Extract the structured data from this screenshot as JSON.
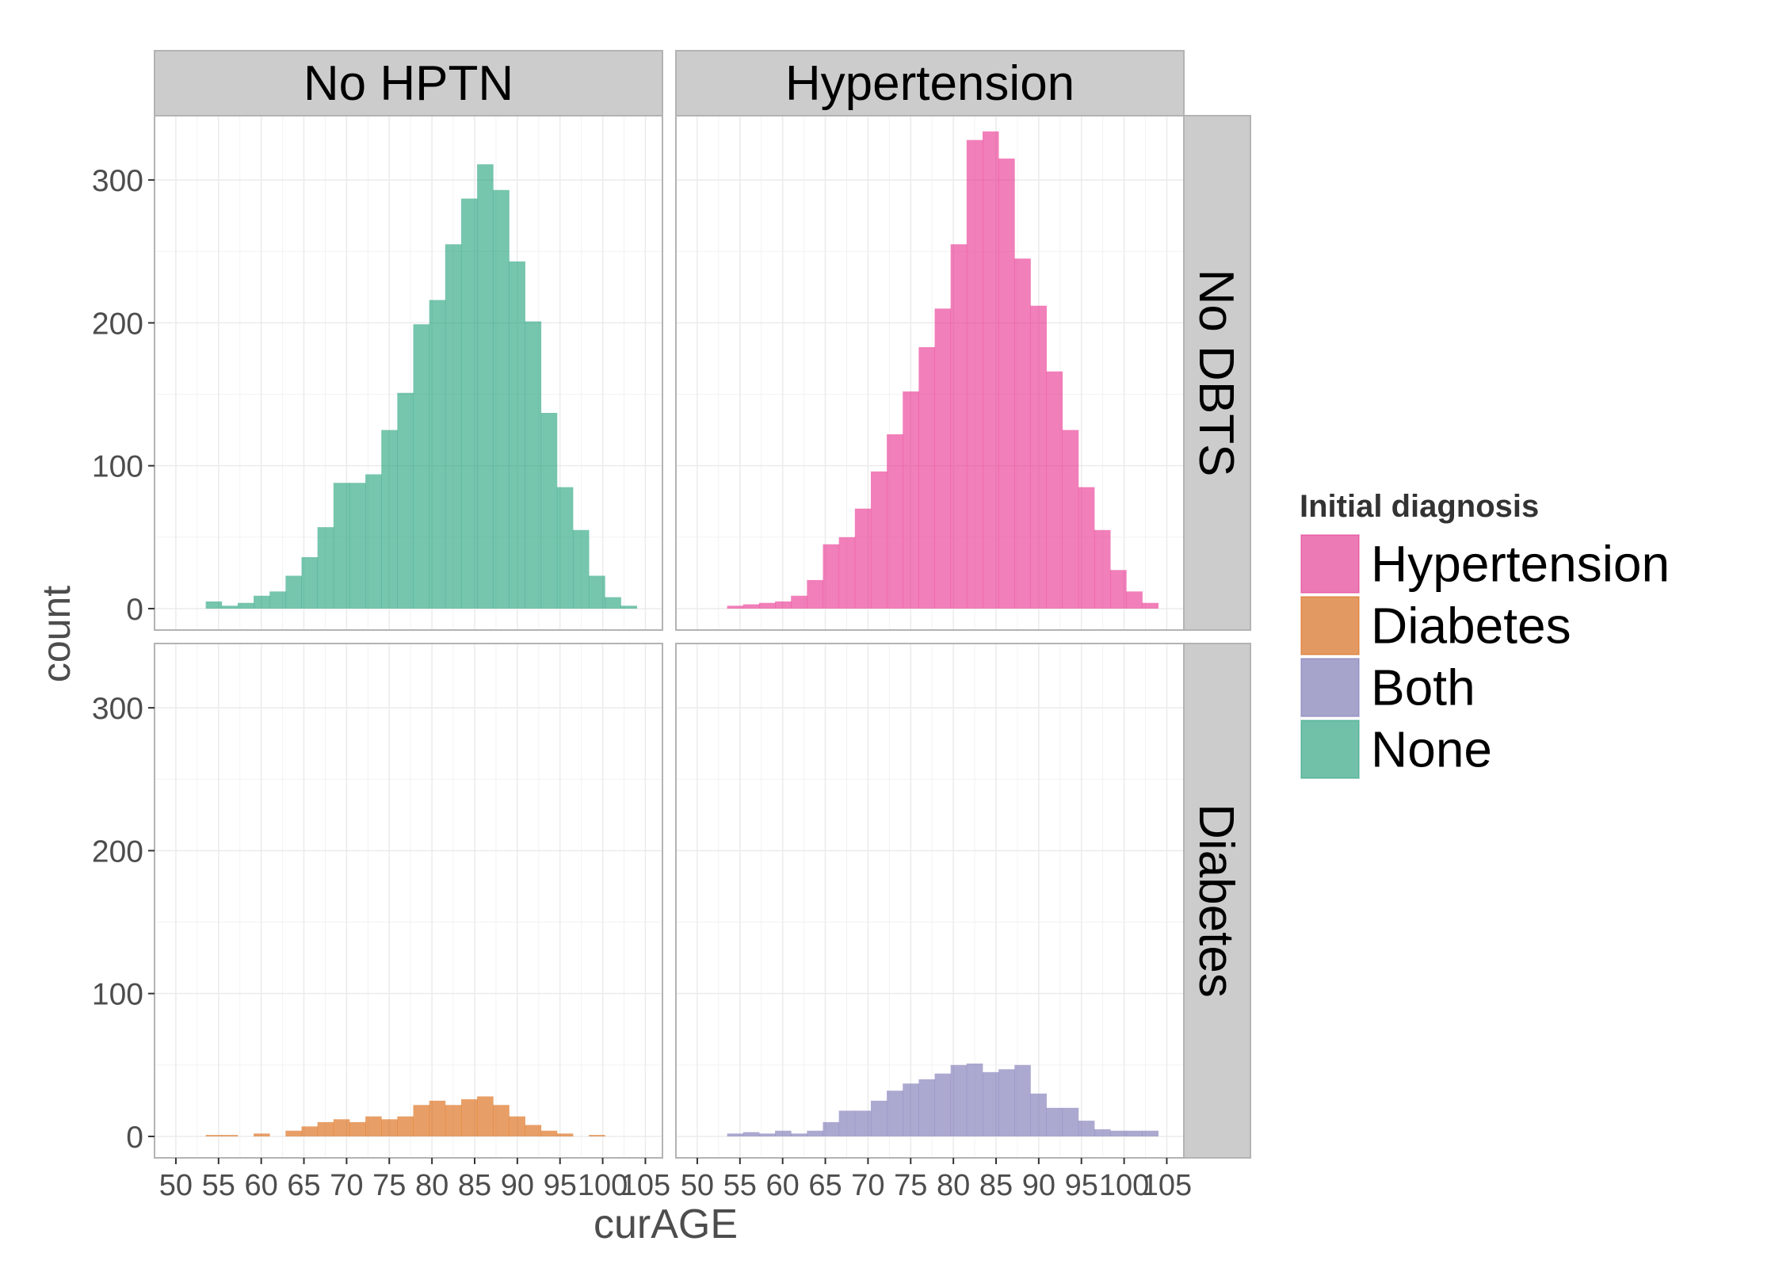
{
  "chart_data": {
    "type": "bar",
    "subtype": "histogram-facet-grid",
    "xlabel": "curAGE",
    "ylabel": "count",
    "xlim": [
      47.5,
      107
    ],
    "ylim": [
      -15,
      345
    ],
    "x_ticks": [
      50,
      55,
      60,
      65,
      70,
      75,
      80,
      85,
      90,
      95,
      100,
      105
    ],
    "y_ticks": [
      0,
      100,
      200,
      300
    ],
    "bin_width": 1.87,
    "bin_start": 53.5,
    "col_facets": [
      "No HPTN",
      "Hypertension"
    ],
    "row_facets": [
      "No DBTS",
      "Diabetes"
    ],
    "legend": {
      "title": "Initial diagnosis",
      "position": "right",
      "items": [
        {
          "label": "Hypertension",
          "color": "#E7298A"
        },
        {
          "label": "Diabetes",
          "color": "#D95F02"
        },
        {
          "label": "Both",
          "color": "#7570B3"
        },
        {
          "label": "None",
          "color": "#1B9E77"
        }
      ]
    },
    "panels": [
      {
        "row": 0,
        "col": 0,
        "series": "None",
        "color": "#1B9E77",
        "values": [
          5,
          2,
          4,
          9,
          12,
          23,
          36,
          57,
          88,
          88,
          94,
          125,
          151,
          199,
          216,
          255,
          287,
          311,
          293,
          243,
          201,
          137,
          85,
          55,
          23,
          8,
          2
        ]
      },
      {
        "row": 0,
        "col": 1,
        "series": "Hypertension",
        "color": "#E7298A",
        "values": [
          2,
          3,
          4,
          5,
          9,
          20,
          45,
          50,
          70,
          96,
          122,
          152,
          183,
          210,
          255,
          328,
          334,
          315,
          245,
          212,
          166,
          125,
          85,
          55,
          27,
          12,
          4
        ]
      },
      {
        "row": 1,
        "col": 0,
        "series": "Diabetes",
        "color": "#D95F02",
        "values": [
          1,
          1,
          0,
          2,
          0,
          4,
          7,
          10,
          12,
          10,
          14,
          12,
          14,
          22,
          25,
          22,
          26,
          28,
          22,
          14,
          8,
          4,
          2,
          0,
          1,
          0,
          0
        ]
      },
      {
        "row": 1,
        "col": 1,
        "series": "Both",
        "color": "#7570B3",
        "values": [
          2,
          3,
          2,
          4,
          2,
          4,
          10,
          18,
          18,
          25,
          32,
          37,
          40,
          44,
          50,
          51,
          45,
          47,
          50,
          30,
          20,
          20,
          11,
          5,
          4,
          4,
          4,
          0
        ]
      }
    ]
  }
}
